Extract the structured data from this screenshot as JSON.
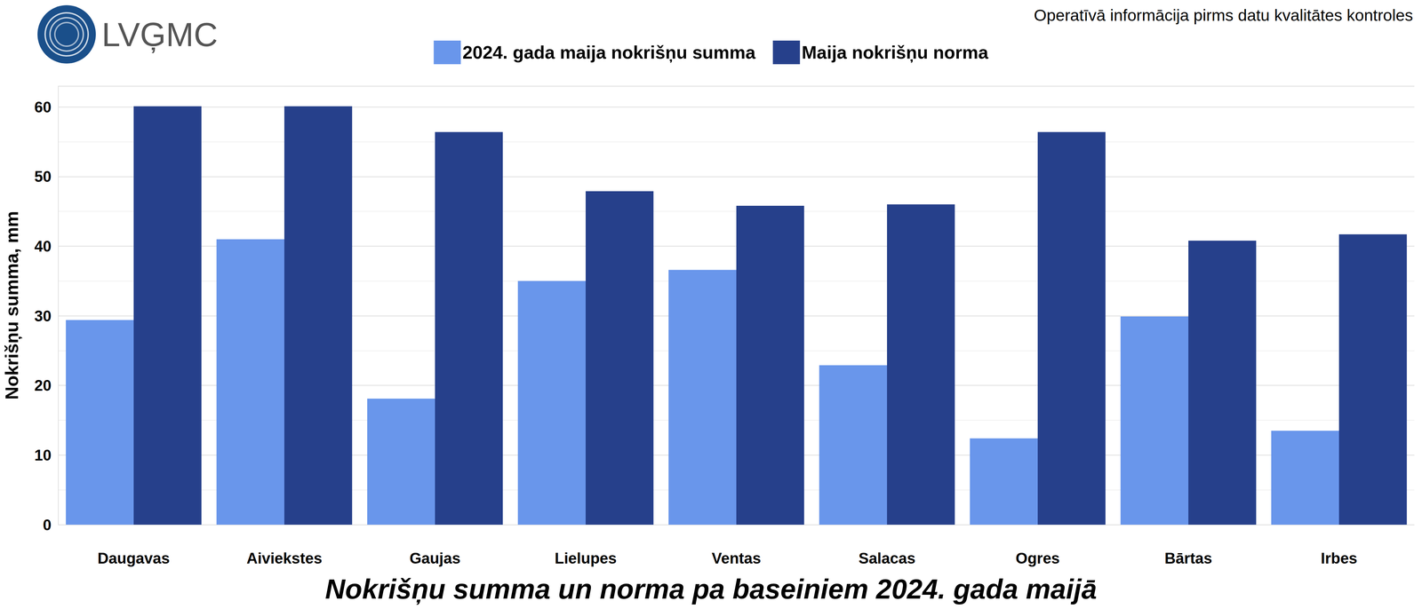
{
  "chart_data": {
    "type": "bar",
    "title": "Nokrišņu summa un norma pa baseiniem 2024. gada maijā",
    "source_note": "Operatīvā informācija pirms datu kvalitātes kontroles",
    "logo_text": "LVĢMC",
    "y_label": "Nokrišņu summa, mm",
    "categories": [
      "Daugavas",
      "Aiviekstes",
      "Gaujas",
      "Lielupes",
      "Ventas",
      "Salacas",
      "Ogres",
      "Bārtas",
      "Irbes"
    ],
    "series": [
      {
        "name": "2024. gada maija nokrišņu summa",
        "color": "#6996EB",
        "values": [
          29.4,
          41.0,
          18.1,
          35.0,
          36.6,
          22.9,
          12.4,
          29.9,
          13.5
        ]
      },
      {
        "name": "Maija nokrišņu norma",
        "color": "#26408B",
        "values": [
          60.1,
          60.1,
          56.4,
          47.9,
          45.8,
          46.0,
          56.4,
          40.8,
          41.7
        ]
      }
    ],
    "ylim": [
      0,
      63
    ],
    "yticks": [
      0,
      10,
      20,
      30,
      40,
      50,
      60
    ],
    "grid": true,
    "legend": "top"
  }
}
